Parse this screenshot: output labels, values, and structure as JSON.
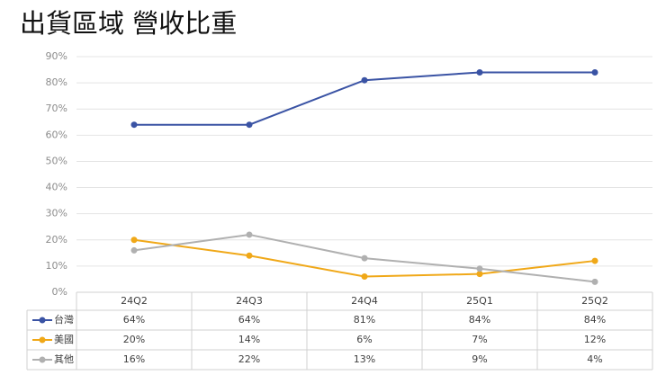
{
  "chart_data": {
    "type": "line",
    "title": "出貨區域 營收比重",
    "categories": [
      "24Q2",
      "24Q3",
      "24Q4",
      "25Q1",
      "25Q2"
    ],
    "series": [
      {
        "name": "台灣",
        "color": "#3a53a4",
        "values": [
          64,
          64,
          81,
          84,
          84
        ],
        "value_labels": [
          "64%",
          "64%",
          "81%",
          "84%",
          "84%"
        ]
      },
      {
        "name": "美國",
        "color": "#f0a818",
        "values": [
          20,
          14,
          6,
          7,
          12
        ],
        "value_labels": [
          "20%",
          "14%",
          "6%",
          "7%",
          "12%"
        ]
      },
      {
        "name": "其他",
        "color": "#b0b0b0",
        "values": [
          16,
          22,
          13,
          9,
          4
        ],
        "value_labels": [
          "16%",
          "22%",
          "13%",
          "9%",
          "4%"
        ]
      }
    ],
    "ylim": [
      0,
      90
    ],
    "yticks": [
      {
        "value": 0,
        "label": "0%"
      },
      {
        "value": 10,
        "label": "10%"
      },
      {
        "value": 20,
        "label": "20%"
      },
      {
        "value": 30,
        "label": "30%"
      },
      {
        "value": 40,
        "label": "40%"
      },
      {
        "value": 50,
        "label": "50%"
      },
      {
        "value": 60,
        "label": "60%"
      },
      {
        "value": 70,
        "label": "70%"
      },
      {
        "value": 80,
        "label": "80%"
      },
      {
        "value": 90,
        "label": "90%"
      }
    ],
    "grid": true
  }
}
